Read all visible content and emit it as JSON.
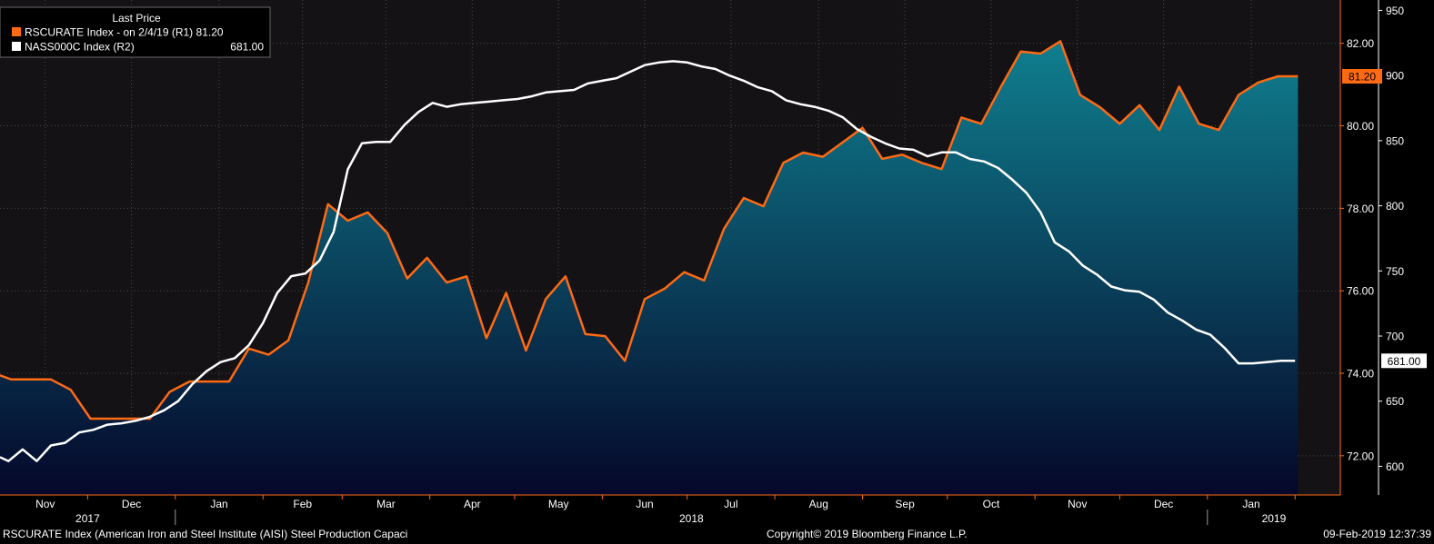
{
  "legend": {
    "header": "Last Price",
    "items": [
      {
        "label": "RSCURATE Index -  on 2/4/19  (R1) 81.20",
        "color": "#ff6a13"
      },
      {
        "label": "NASS000C Index  (R2)",
        "value": "681.00",
        "color": "#ffffff"
      }
    ]
  },
  "footer": {
    "description": "RSCURATE Index (American Iron and Steel Institute (AISI) Steel Production Capaci",
    "copyright": "Copyright© 2019 Bloomberg Finance L.P.",
    "timestamp": "09-Feb-2019 12:37:39"
  },
  "colors": {
    "background": "#000000",
    "plot_background": "#141214",
    "rsc_line": "#ff6a13",
    "nass_line": "#ffffff",
    "area_top": "#0f7f8f",
    "area_bottom": "#05072a",
    "axis": "#ff6a13",
    "grid": "#4a4a4a"
  },
  "chart_data": {
    "type": "line",
    "x_axis": {
      "months": [
        "Nov",
        "Dec",
        "Jan",
        "Feb",
        "Mar",
        "Apr",
        "May",
        "Jun",
        "Jul",
        "Aug",
        "Sep",
        "Oct",
        "Nov",
        "Dec",
        "Jan"
      ],
      "years": [
        "2017",
        "2018",
        "2019"
      ]
    },
    "y_axis_r1": {
      "ticks": [
        "72.00",
        "74.00",
        "76.00",
        "78.00",
        "80.00",
        "82.00"
      ],
      "range": [
        71.05,
        83.05
      ],
      "last_value_label": "81.20"
    },
    "y_axis_r2": {
      "ticks": [
        "600",
        "650",
        "700",
        "750",
        "800",
        "850",
        "900",
        "950"
      ],
      "range": [
        578,
        958
      ],
      "last_value_label": "681.00"
    },
    "grid": true,
    "legend_position": "top-left",
    "series": [
      {
        "name": "RSCURATE Index",
        "axis": "R1",
        "style": "area",
        "x": [
          "2017-10-31",
          "2017-11-04",
          "2017-11-11",
          "2017-11-18",
          "2017-11-25",
          "2017-12-02",
          "2017-12-09",
          "2017-12-16",
          "2017-12-23",
          "2017-12-30",
          "2018-01-06",
          "2018-01-13",
          "2018-01-20",
          "2018-01-27",
          "2018-02-03",
          "2018-02-10",
          "2018-02-17",
          "2018-02-24",
          "2018-03-03",
          "2018-03-10",
          "2018-03-17",
          "2018-03-24",
          "2018-03-31",
          "2018-04-07",
          "2018-04-14",
          "2018-04-21",
          "2018-04-28",
          "2018-05-05",
          "2018-05-12",
          "2018-05-19",
          "2018-05-26",
          "2018-06-02",
          "2018-06-09",
          "2018-06-16",
          "2018-06-23",
          "2018-06-30",
          "2018-07-07",
          "2018-07-14",
          "2018-07-21",
          "2018-07-28",
          "2018-08-04",
          "2018-08-11",
          "2018-08-18",
          "2018-08-25",
          "2018-09-01",
          "2018-09-08",
          "2018-09-15",
          "2018-09-22",
          "2018-09-29",
          "2018-10-06",
          "2018-10-13",
          "2018-10-20",
          "2018-10-27",
          "2018-11-03",
          "2018-11-10",
          "2018-11-17",
          "2018-11-24",
          "2018-12-01",
          "2018-12-08",
          "2018-12-15",
          "2018-12-22",
          "2018-12-29",
          "2019-01-05",
          "2019-01-12",
          "2019-01-19",
          "2019-01-26",
          "2019-02-02"
        ],
        "values": [
          73.95,
          73.85,
          73.85,
          73.85,
          73.6,
          72.9,
          72.9,
          72.9,
          72.9,
          73.55,
          73.8,
          73.8,
          73.8,
          74.6,
          74.45,
          74.8,
          76.2,
          78.1,
          77.7,
          77.9,
          77.4,
          76.3,
          76.8,
          76.2,
          76.35,
          74.85,
          75.95,
          74.55,
          75.8,
          76.35,
          74.95,
          74.9,
          74.3,
          75.8,
          76.05,
          76.45,
          76.25,
          77.5,
          78.25,
          78.05,
          79.1,
          79.35,
          79.25,
          79.6,
          79.95,
          79.2,
          79.3,
          79.1,
          78.95,
          80.2,
          80.05,
          80.95,
          81.8,
          81.75,
          82.05,
          80.75,
          80.45,
          80.05,
          80.5,
          79.9,
          80.95,
          80.05,
          79.9,
          80.75,
          81.05,
          81.2,
          81.2
        ]
      },
      {
        "name": "NASS000C Index",
        "axis": "R2",
        "style": "line",
        "x": [
          "2017-10-31",
          "2017-11-03",
          "2017-11-08",
          "2017-11-13",
          "2017-11-18",
          "2017-11-23",
          "2017-11-28",
          "2017-12-03",
          "2017-12-08",
          "2017-12-13",
          "2017-12-18",
          "2017-12-23",
          "2017-12-28",
          "2018-01-02",
          "2018-01-07",
          "2018-01-12",
          "2018-01-17",
          "2018-01-22",
          "2018-01-27",
          "2018-02-01",
          "2018-02-06",
          "2018-02-11",
          "2018-02-16",
          "2018-02-21",
          "2018-02-26",
          "2018-03-03",
          "2018-03-08",
          "2018-03-13",
          "2018-03-18",
          "2018-03-23",
          "2018-03-28",
          "2018-04-02",
          "2018-04-07",
          "2018-04-12",
          "2018-04-17",
          "2018-04-22",
          "2018-04-27",
          "2018-05-02",
          "2018-05-07",
          "2018-05-12",
          "2018-05-17",
          "2018-05-22",
          "2018-05-27",
          "2018-06-01",
          "2018-06-06",
          "2018-06-11",
          "2018-06-16",
          "2018-06-21",
          "2018-06-26",
          "2018-07-01",
          "2018-07-06",
          "2018-07-11",
          "2018-07-16",
          "2018-07-21",
          "2018-07-26",
          "2018-07-31",
          "2018-08-05",
          "2018-08-10",
          "2018-08-15",
          "2018-08-20",
          "2018-08-25",
          "2018-08-30",
          "2018-09-04",
          "2018-09-09",
          "2018-09-14",
          "2018-09-19",
          "2018-09-24",
          "2018-09-29",
          "2018-10-04",
          "2018-10-09",
          "2018-10-14",
          "2018-10-19",
          "2018-10-24",
          "2018-10-29",
          "2018-11-03",
          "2018-11-08",
          "2018-11-13",
          "2018-11-18",
          "2018-11-23",
          "2018-11-28",
          "2018-12-03",
          "2018-12-08",
          "2018-12-13",
          "2018-12-18",
          "2018-12-23",
          "2018-12-28",
          "2019-01-02",
          "2019-01-07",
          "2019-01-12",
          "2019-01-17",
          "2019-01-22",
          "2019-01-27",
          "2019-02-01"
        ],
        "values": [
          607,
          604,
          613,
          604,
          616,
          618,
          626,
          628,
          632,
          633,
          635,
          638,
          643,
          650,
          663,
          673,
          680,
          683,
          693,
          710,
          733,
          746,
          748,
          758,
          780,
          828,
          848,
          849,
          849,
          862,
          872,
          879,
          876,
          878,
          879,
          880,
          881,
          882,
          884,
          887,
          888,
          889,
          894,
          896,
          898,
          903,
          908,
          910,
          911,
          910,
          907,
          905,
          900,
          896,
          891,
          888,
          881,
          878,
          876,
          873,
          868,
          859,
          853,
          848,
          844,
          843,
          838,
          841,
          841,
          836,
          834,
          829,
          820,
          810,
          795,
          772,
          765,
          754,
          747,
          738,
          735,
          734,
          728,
          718,
          712,
          705,
          701,
          691,
          679,
          679,
          680,
          681,
          681
        ]
      }
    ]
  }
}
